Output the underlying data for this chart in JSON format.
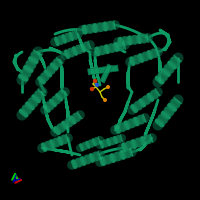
{
  "background_color": "#000000",
  "protein_color_light": "#1db87a",
  "protein_color_mid": "#0d9962",
  "protein_color_dark": "#0a6644",
  "ligand_yellow": "#cccc00",
  "ligand_blue": "#2255cc",
  "ligand_red": "#cc3300",
  "ligand_orange": "#dd8800",
  "axis_x": "#cc0000",
  "axis_y": "#00cc00",
  "axis_z": "#0000bb",
  "figsize": [
    2.0,
    2.0
  ],
  "dpi": 100
}
